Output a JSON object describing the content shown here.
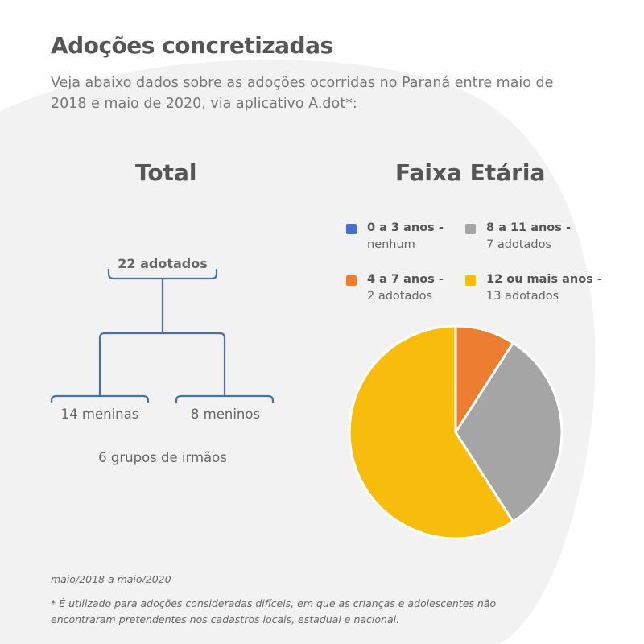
{
  "header": {
    "title": "Adoções concretizadas",
    "subtitle": "Veja abaixo dados sobre as adoções ocorridas no Paraná entre maio de 2018 e maio de 2020, via aplicativo A.dot*:"
  },
  "total": {
    "title": "Total",
    "root_label": "22 adotados",
    "branch_left": "14 meninas",
    "branch_right": "8 meninos",
    "groups": "6 grupos de irmãos"
  },
  "age": {
    "title": "Faixa Etária"
  },
  "chart_data": {
    "type": "pie",
    "title": "Faixa Etária",
    "legend_position": "top",
    "slices": [
      {
        "label": "0 a 3 anos -",
        "detail": "nenhum",
        "value": 0,
        "color": "#4472c4"
      },
      {
        "label": "8 a 11 anos -",
        "detail": "7 adotados",
        "value": 7,
        "color": "#a5a5a5"
      },
      {
        "label": "4 a 7 anos -",
        "detail": "2 adotados",
        "value": 2,
        "color": "#ed7d31"
      },
      {
        "label": "12 ou mais anos -",
        "detail": "13 adotados",
        "value": 13,
        "color": "#f8bc0c"
      }
    ],
    "draw_order": [
      "4 a 7 anos -",
      "8 a 11 anos -",
      "12 ou mais anos -"
    ]
  },
  "footer": {
    "period": "maio/2018 a maio/2020",
    "footnote": "* É utilizado para adoções consideradas difíceis, em que as crianças e adolescentes não encontraram pretendentes nos cadastros locais, estadual e nacional."
  },
  "colors": {
    "background_blob": "#f2f2f2",
    "tree_line": "#4a6fa5",
    "text": "#555555"
  }
}
